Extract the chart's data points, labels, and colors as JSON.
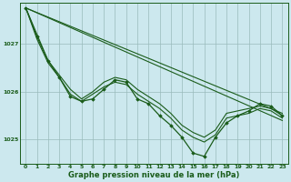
{
  "title": "Graphe pression niveau de la mer (hPa)",
  "bg_color": "#cce8ee",
  "grid_color": "#99bbbb",
  "line_color": "#1a5c1a",
  "xlim": [
    -0.5,
    23.5
  ],
  "ylim": [
    1024.5,
    1027.85
  ],
  "yticks": [
    1025,
    1026,
    1027
  ],
  "xticks": [
    0,
    1,
    2,
    3,
    4,
    5,
    6,
    7,
    8,
    9,
    10,
    11,
    12,
    13,
    14,
    15,
    16,
    17,
    18,
    19,
    20,
    21,
    22,
    23
  ],
  "series1": {
    "x": [
      0,
      1,
      2,
      3,
      4,
      5,
      6,
      7,
      8,
      9,
      10,
      11,
      12,
      13,
      14,
      15,
      16,
      17,
      18,
      19,
      20,
      21,
      22,
      23
    ],
    "y": [
      1027.75,
      1027.2,
      1026.65,
      1026.35,
      1026.05,
      1025.85,
      1026.0,
      1026.2,
      1026.3,
      1026.25,
      1026.05,
      1025.9,
      1025.75,
      1025.55,
      1025.3,
      1025.15,
      1025.05,
      1025.2,
      1025.55,
      1025.6,
      1025.65,
      1025.7,
      1025.65,
      1025.5
    ]
  },
  "series2": {
    "x": [
      0,
      1,
      2,
      3,
      4,
      5,
      6,
      7,
      8,
      9,
      10,
      11,
      12,
      13,
      14,
      15,
      16,
      17,
      18,
      19,
      20,
      21,
      22,
      23
    ],
    "y": [
      1027.75,
      1027.1,
      1026.6,
      1026.3,
      1025.95,
      1025.8,
      1025.95,
      1026.1,
      1026.2,
      1026.15,
      1025.95,
      1025.8,
      1025.65,
      1025.45,
      1025.2,
      1025.05,
      1024.95,
      1025.1,
      1025.45,
      1025.5,
      1025.55,
      1025.65,
      1025.6,
      1025.45
    ]
  },
  "series3": {
    "x": [
      0,
      23
    ],
    "y": [
      1027.75,
      1025.4
    ]
  },
  "series4": {
    "x": [
      0,
      23
    ],
    "y": [
      1027.75,
      1025.55
    ]
  },
  "detail_series": {
    "x": [
      0,
      1,
      2,
      3,
      4,
      5,
      6,
      7,
      8,
      9,
      10,
      11,
      12,
      13,
      14,
      15,
      16,
      17,
      18,
      19,
      20,
      21,
      22,
      23
    ],
    "y": [
      1027.75,
      1027.15,
      1026.65,
      1026.3,
      1025.9,
      1025.8,
      1025.85,
      1026.05,
      1026.25,
      1026.2,
      1025.85,
      1025.75,
      1025.5,
      1025.3,
      1025.05,
      1024.72,
      1024.65,
      1025.05,
      1025.35,
      1025.5,
      1025.6,
      1025.75,
      1025.7,
      1025.5
    ]
  }
}
